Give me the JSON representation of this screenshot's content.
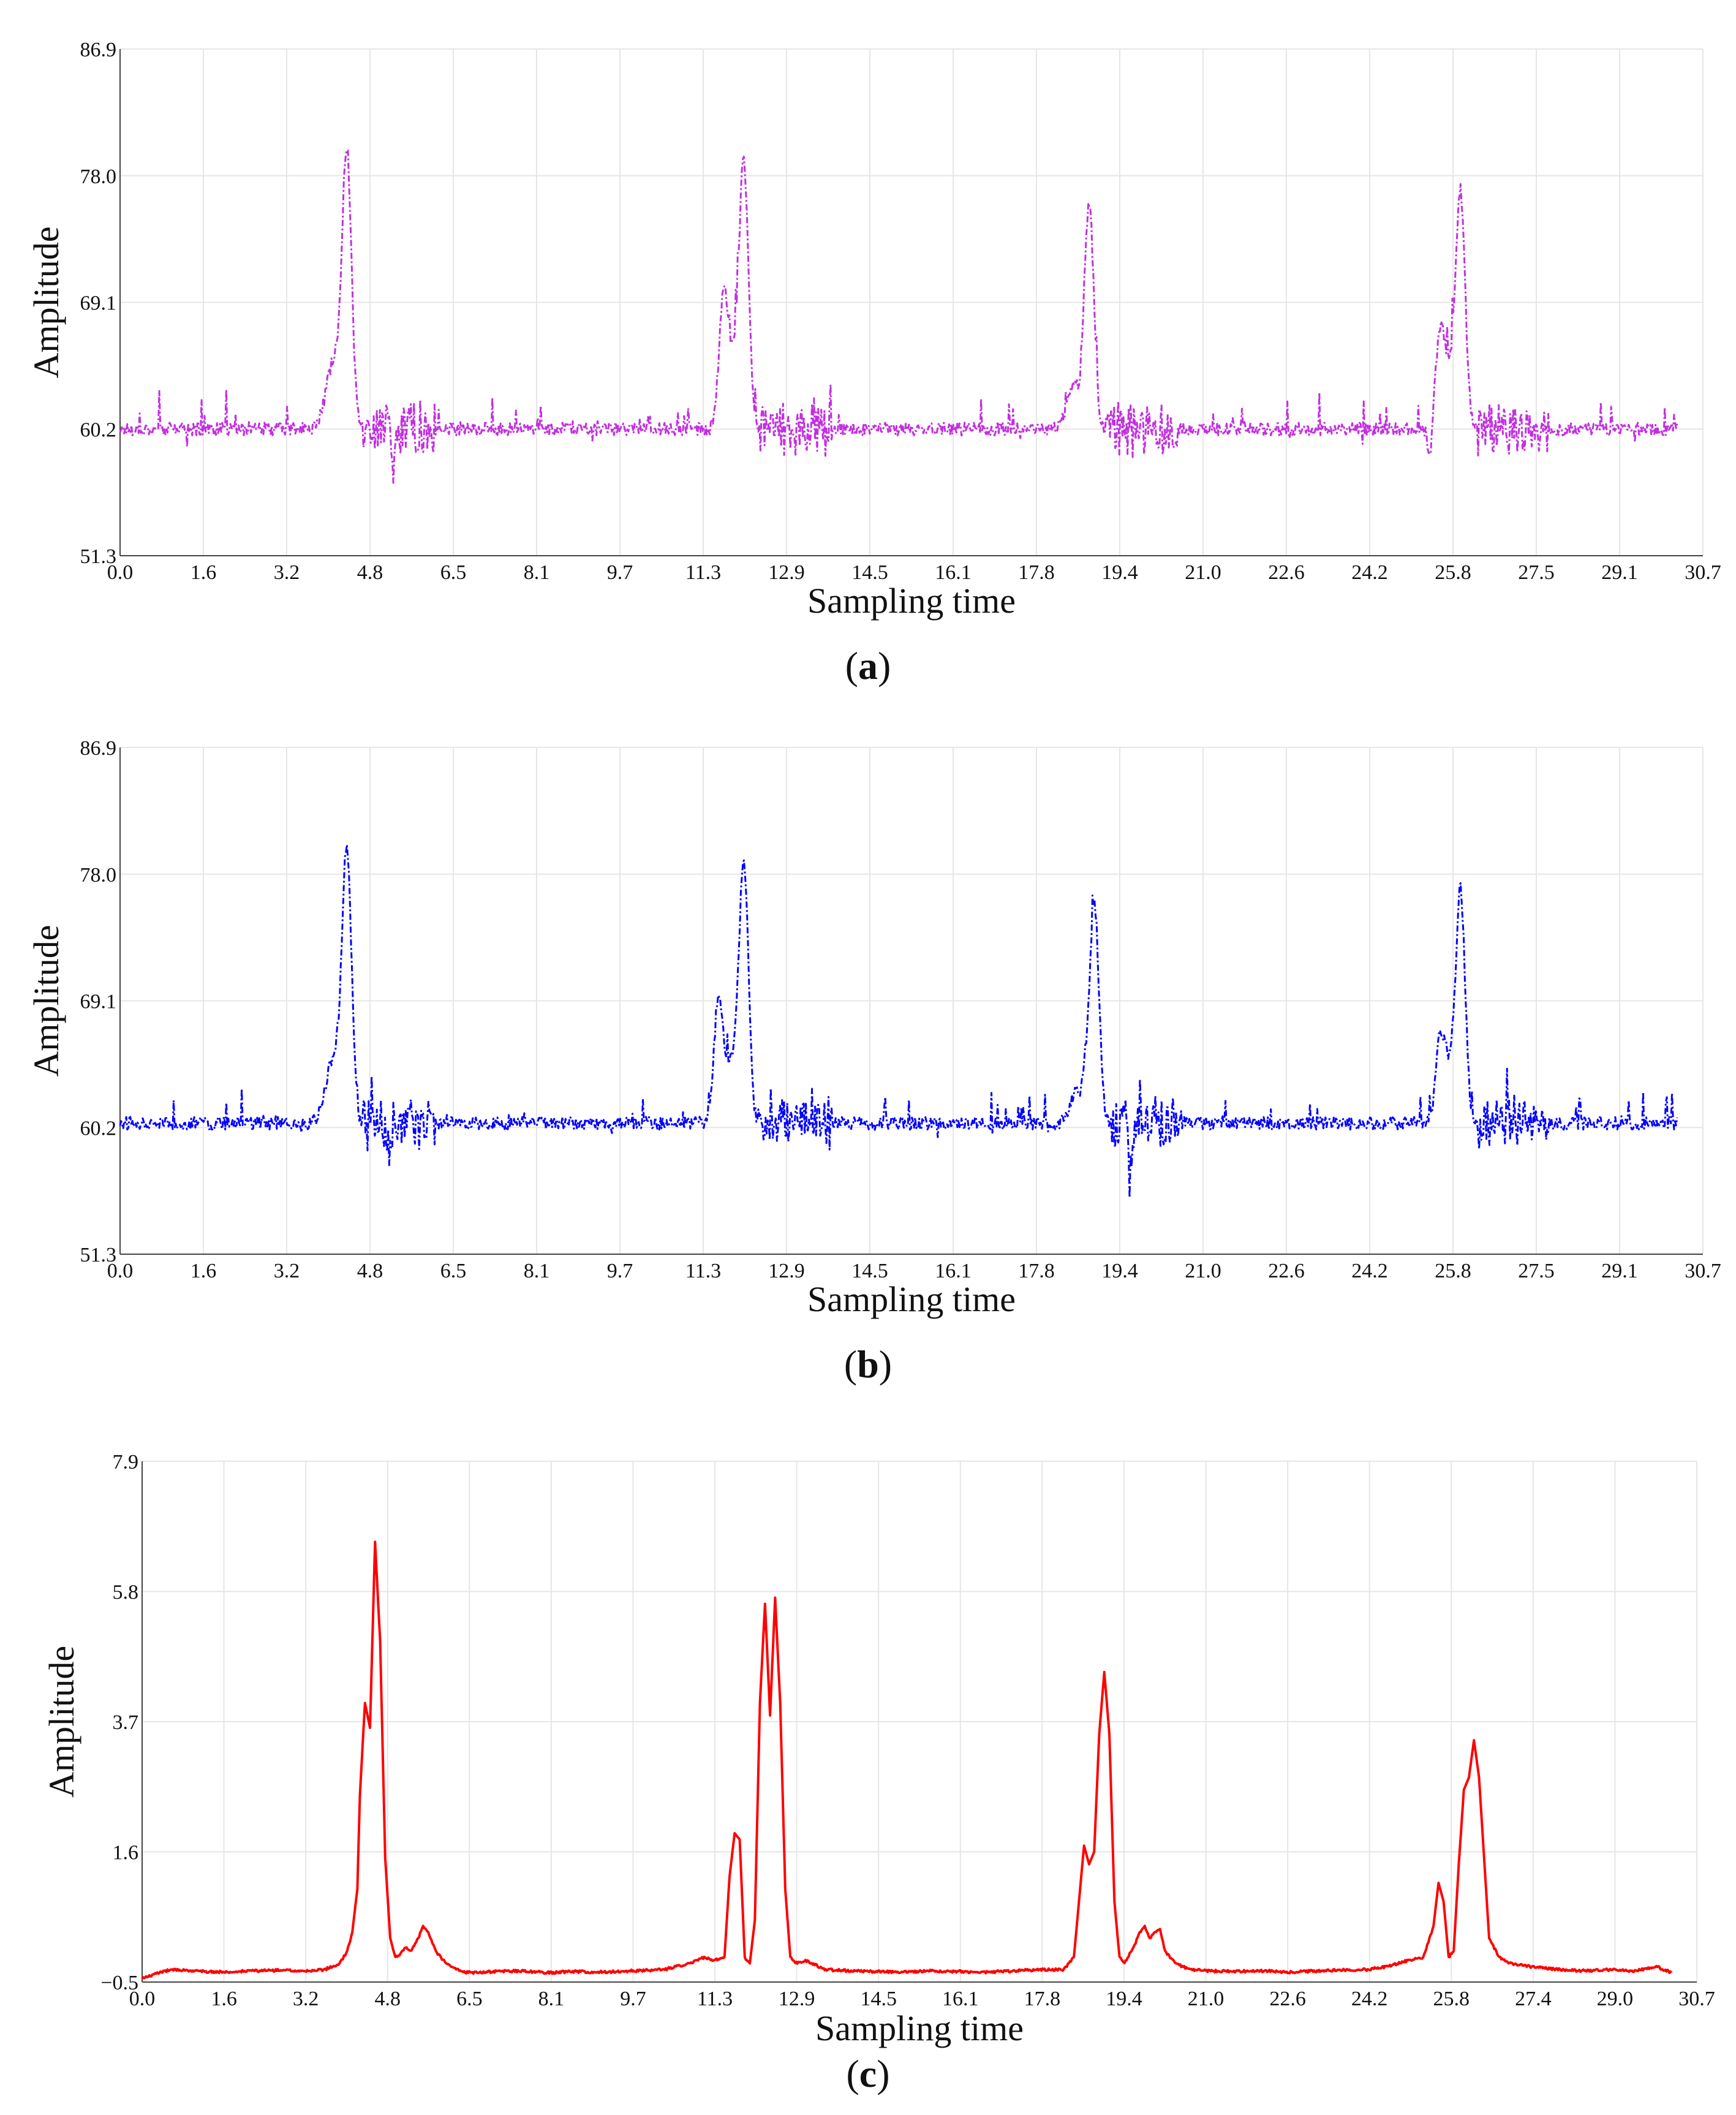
{
  "chart_data": [
    {
      "type": "line",
      "panel_label": "a",
      "xlabel": "Sampling time",
      "ylabel": "Amplitude",
      "xlim": [
        0.0,
        30.7
      ],
      "ylim": [
        51.3,
        86.9
      ],
      "xticks": [
        "0.0",
        "1.6",
        "3.2",
        "4.8",
        "6.5",
        "8.1",
        "9.7",
        "11.3",
        "12.9",
        "14.5",
        "16.1",
        "17.8",
        "19.4",
        "21.0",
        "22.6",
        "24.2",
        "25.8",
        "27.5",
        "29.1",
        "30.7"
      ],
      "yticks": [
        "51.3",
        "60.2",
        "69.1",
        "78.0",
        "86.9"
      ],
      "color": "#c22fe0",
      "line_style": "dash-dot",
      "grid": true,
      "baseline": 60.2,
      "x_end": 30.2,
      "peaks": [
        {
          "x": 4.4,
          "y": 79.0
        },
        {
          "x": 12.1,
          "y": 78.0
        },
        {
          "x": 18.8,
          "y": 75.0
        },
        {
          "x": 26.0,
          "y": 76.0
        }
      ],
      "shoulders": [
        {
          "x": 11.7,
          "y": 67.5
        },
        {
          "x": 25.6,
          "y": 65.0
        }
      ],
      "dips": [
        {
          "x": 5.3,
          "y": 57.5
        },
        {
          "x": 18.6,
          "y": 58.7
        },
        {
          "x": 25.4,
          "y": 57.5
        }
      ]
    },
    {
      "type": "line",
      "panel_label": "b",
      "xlabel": "Sampling time",
      "ylabel": "Amplitude",
      "xlim": [
        0.0,
        30.7
      ],
      "ylim": [
        51.3,
        86.9
      ],
      "xticks": [
        "0.0",
        "1.6",
        "3.2",
        "4.8",
        "6.5",
        "8.1",
        "9.7",
        "11.3",
        "12.9",
        "14.5",
        "16.1",
        "17.8",
        "19.4",
        "21.0",
        "22.6",
        "24.2",
        "25.8",
        "27.5",
        "29.1",
        "30.7"
      ],
      "yticks": [
        "51.3",
        "60.2",
        "69.1",
        "78.0",
        "86.9"
      ],
      "color": "#0000ff",
      "line_style": "dash-dot",
      "grid": true,
      "baseline": 60.5,
      "x_end": 30.2,
      "peaks": [
        {
          "x": 4.4,
          "y": 79.0
        },
        {
          "x": 12.1,
          "y": 78.0
        },
        {
          "x": 18.9,
          "y": 75.0
        },
        {
          "x": 26.0,
          "y": 76.0
        }
      ],
      "shoulders": [
        {
          "x": 11.6,
          "y": 68.5
        },
        {
          "x": 25.6,
          "y": 64.5
        }
      ],
      "dips": [
        {
          "x": 5.2,
          "y": 58.2
        },
        {
          "x": 19.6,
          "y": 56.5
        },
        {
          "x": 18.6,
          "y": 59.0
        }
      ]
    },
    {
      "type": "line",
      "panel_label": "c",
      "xlabel": "Sampling time",
      "ylabel": "Amplitude",
      "xlim": [
        0.0,
        30.7
      ],
      "ylim": [
        -0.5,
        7.9
      ],
      "xticks": [
        "0.0",
        "1.6",
        "3.2",
        "4.8",
        "6.5",
        "8.1",
        "9.7",
        "11.3",
        "12.9",
        "14.5",
        "16.1",
        "17.8",
        "19.4",
        "21.0",
        "22.6",
        "24.2",
        "25.8",
        "27.4",
        "29.0",
        "30.7"
      ],
      "yticks": [
        "−0.5",
        "1.6",
        "3.7",
        "5.8",
        "7.9"
      ],
      "color": "#ff0000",
      "line_style": "solid",
      "grid": true,
      "baseline": -0.3,
      "x_end": 30.2,
      "points": [
        [
          0.0,
          -0.45
        ],
        [
          0.3,
          -0.35
        ],
        [
          0.6,
          -0.3
        ],
        [
          1.0,
          -0.32
        ],
        [
          1.6,
          -0.34
        ],
        [
          2.2,
          -0.32
        ],
        [
          2.8,
          -0.31
        ],
        [
          3.2,
          -0.33
        ],
        [
          3.6,
          -0.3
        ],
        [
          3.9,
          -0.2
        ],
        [
          4.05,
          0.0
        ],
        [
          4.15,
          0.3
        ],
        [
          4.25,
          1.0
        ],
        [
          4.3,
          2.5
        ],
        [
          4.4,
          4.0
        ],
        [
          4.5,
          3.6
        ],
        [
          4.6,
          6.6
        ],
        [
          4.7,
          5.0
        ],
        [
          4.8,
          1.5
        ],
        [
          4.9,
          0.2
        ],
        [
          5.0,
          -0.1
        ],
        [
          5.1,
          -0.05
        ],
        [
          5.2,
          0.05
        ],
        [
          5.3,
          0.0
        ],
        [
          5.45,
          0.2
        ],
        [
          5.55,
          0.4
        ],
        [
          5.65,
          0.3
        ],
        [
          5.8,
          0.0
        ],
        [
          6.0,
          -0.2
        ],
        [
          6.3,
          -0.33
        ],
        [
          6.5,
          -0.35
        ],
        [
          7.0,
          -0.33
        ],
        [
          7.5,
          -0.32
        ],
        [
          8.0,
          -0.35
        ],
        [
          8.5,
          -0.33
        ],
        [
          9.0,
          -0.34
        ],
        [
          9.7,
          -0.32
        ],
        [
          10.3,
          -0.3
        ],
        [
          10.8,
          -0.2
        ],
        [
          11.1,
          -0.1
        ],
        [
          11.3,
          -0.15
        ],
        [
          11.5,
          -0.1
        ],
        [
          11.6,
          1.2
        ],
        [
          11.7,
          1.9
        ],
        [
          11.8,
          1.8
        ],
        [
          11.9,
          -0.1
        ],
        [
          12.0,
          -0.2
        ],
        [
          12.1,
          0.5
        ],
        [
          12.2,
          4.0
        ],
        [
          12.3,
          5.6
        ],
        [
          12.4,
          3.8
        ],
        [
          12.5,
          5.7
        ],
        [
          12.6,
          4.0
        ],
        [
          12.7,
          1.0
        ],
        [
          12.8,
          -0.1
        ],
        [
          12.9,
          -0.2
        ],
        [
          13.1,
          -0.15
        ],
        [
          13.5,
          -0.3
        ],
        [
          14.0,
          -0.32
        ],
        [
          14.5,
          -0.33
        ],
        [
          15.0,
          -0.34
        ],
        [
          15.5,
          -0.32
        ],
        [
          16.1,
          -0.33
        ],
        [
          16.6,
          -0.34
        ],
        [
          17.2,
          -0.32
        ],
        [
          17.8,
          -0.3
        ],
        [
          18.2,
          -0.3
        ],
        [
          18.4,
          -0.1
        ],
        [
          18.5,
          0.8
        ],
        [
          18.6,
          1.7
        ],
        [
          18.7,
          1.4
        ],
        [
          18.8,
          1.6
        ],
        [
          18.9,
          3.5
        ],
        [
          19.0,
          4.5
        ],
        [
          19.1,
          3.5
        ],
        [
          19.2,
          0.8
        ],
        [
          19.3,
          -0.1
        ],
        [
          19.4,
          -0.2
        ],
        [
          19.6,
          0.1
        ],
        [
          19.7,
          0.3
        ],
        [
          19.8,
          0.4
        ],
        [
          19.9,
          0.2
        ],
        [
          20.0,
          0.3
        ],
        [
          20.1,
          0.35
        ],
        [
          20.2,
          0.0
        ],
        [
          20.4,
          -0.2
        ],
        [
          20.7,
          -0.3
        ],
        [
          21.0,
          -0.32
        ],
        [
          21.6,
          -0.33
        ],
        [
          22.2,
          -0.32
        ],
        [
          22.6,
          -0.34
        ],
        [
          23.2,
          -0.32
        ],
        [
          23.8,
          -0.3
        ],
        [
          24.2,
          -0.3
        ],
        [
          24.6,
          -0.25
        ],
        [
          25.0,
          -0.15
        ],
        [
          25.3,
          -0.1
        ],
        [
          25.5,
          0.4
        ],
        [
          25.6,
          1.1
        ],
        [
          25.7,
          0.8
        ],
        [
          25.8,
          -0.1
        ],
        [
          25.9,
          0.0
        ],
        [
          26.0,
          1.4
        ],
        [
          26.1,
          2.6
        ],
        [
          26.2,
          2.8
        ],
        [
          26.3,
          3.4
        ],
        [
          26.4,
          2.8
        ],
        [
          26.5,
          1.5
        ],
        [
          26.6,
          0.2
        ],
        [
          26.8,
          -0.1
        ],
        [
          27.0,
          -0.2
        ],
        [
          27.4,
          -0.25
        ],
        [
          28.0,
          -0.3
        ],
        [
          28.5,
          -0.32
        ],
        [
          29.0,
          -0.3
        ],
        [
          29.5,
          -0.32
        ],
        [
          29.9,
          -0.25
        ],
        [
          30.2,
          -0.35
        ]
      ]
    }
  ],
  "captions": [
    "a",
    "b",
    "c"
  ]
}
